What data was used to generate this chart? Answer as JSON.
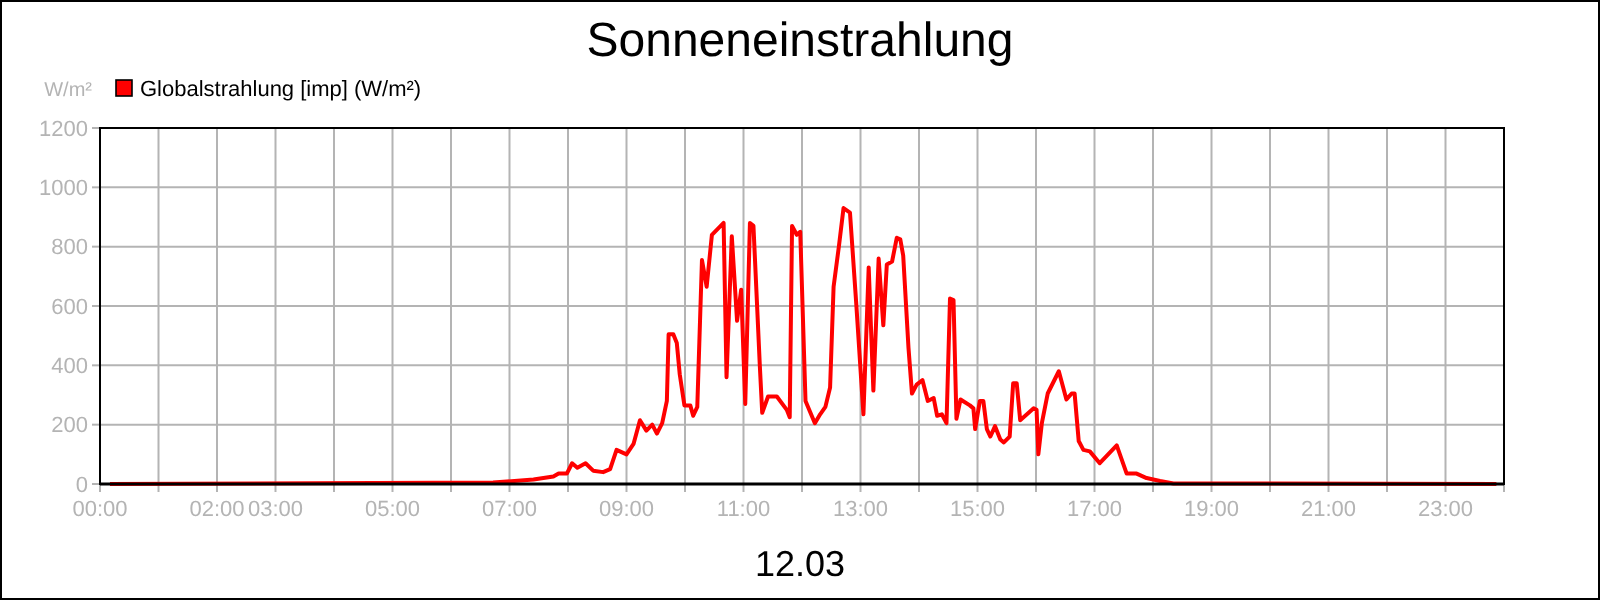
{
  "chart_data": {
    "type": "line",
    "title": "Sonneneinstrahlung",
    "xlabel": "12.03",
    "ylabel": "W/m²",
    "legend": "top left",
    "grid": true,
    "marker": "none",
    "line_style": "solid",
    "xlim": [
      0,
      24
    ],
    "ylim": [
      0,
      1200
    ],
    "yticks": [
      0,
      200,
      400,
      600,
      800,
      1000,
      1200
    ],
    "xticks": [
      {
        "value": 0,
        "label": "00:00"
      },
      {
        "value": 1,
        "label": null
      },
      {
        "value": 2,
        "label": "02:00"
      },
      {
        "value": 3,
        "label": "03:00"
      },
      {
        "value": 4,
        "label": null
      },
      {
        "value": 5,
        "label": "05:00"
      },
      {
        "value": 6,
        "label": null
      },
      {
        "value": 7,
        "label": "07:00"
      },
      {
        "value": 8,
        "label": null
      },
      {
        "value": 9,
        "label": "09:00"
      },
      {
        "value": 10,
        "label": null
      },
      {
        "value": 11,
        "label": "11:00"
      },
      {
        "value": 12,
        "label": null
      },
      {
        "value": 13,
        "label": "13:00"
      },
      {
        "value": 14,
        "label": null
      },
      {
        "value": 15,
        "label": "15:00"
      },
      {
        "value": 16,
        "label": null
      },
      {
        "value": 17,
        "label": "17:00"
      },
      {
        "value": 18,
        "label": null
      },
      {
        "value": 19,
        "label": "19:00"
      },
      {
        "value": 20,
        "label": null
      },
      {
        "value": 21,
        "label": "21:00"
      },
      {
        "value": 22,
        "label": null
      },
      {
        "value": 23,
        "label": "23:00"
      },
      {
        "value": 24,
        "label": null
      }
    ],
    "series": [
      {
        "name": "Globalstrahlung [imp] (W/m²)",
        "color": "#ff0000",
        "x": [
          0.17,
          6.72,
          7.41,
          7.75,
          7.84,
          7.98,
          8.07,
          8.16,
          8.3,
          8.43,
          8.6,
          8.72,
          8.83,
          9.0,
          9.12,
          9.23,
          9.34,
          9.44,
          9.52,
          9.61,
          9.69,
          9.72,
          9.8,
          9.86,
          9.91,
          9.99,
          10.09,
          10.14,
          10.21,
          10.29,
          10.37,
          10.46,
          10.66,
          10.71,
          10.8,
          10.89,
          10.96,
          11.03,
          11.11,
          11.17,
          11.28,
          11.32,
          11.42,
          11.57,
          11.74,
          11.79,
          11.83,
          11.91,
          11.97,
          12.06,
          12.22,
          12.31,
          12.4,
          12.48,
          12.54,
          12.63,
          12.71,
          12.82,
          12.93,
          13.05,
          13.14,
          13.22,
          13.31,
          13.39,
          13.45,
          13.54,
          13.62,
          13.68,
          13.73,
          13.82,
          13.88,
          13.96,
          14.06,
          14.15,
          14.25,
          14.31,
          14.39,
          14.47,
          14.53,
          14.59,
          14.64,
          14.71,
          14.87,
          14.93,
          14.96,
          15.04,
          15.1,
          15.16,
          15.22,
          15.3,
          15.39,
          15.45,
          15.55,
          15.61,
          15.67,
          15.73,
          15.96,
          16.01,
          16.04,
          16.1,
          16.2,
          16.39,
          16.52,
          16.61,
          16.66,
          16.73,
          16.81,
          16.92,
          17.09,
          17.38,
          17.55,
          17.72,
          17.89,
          18.12,
          18.35,
          23.87
        ],
        "values": [
          0,
          5,
          15,
          25,
          35,
          35,
          70,
          55,
          70,
          45,
          40,
          50,
          115,
          100,
          135,
          215,
          180,
          200,
          170,
          205,
          280,
          505,
          505,
          475,
          370,
          265,
          265,
          230,
          260,
          755,
          665,
          840,
          880,
          360,
          835,
          550,
          655,
          270,
          880,
          870,
          395,
          240,
          295,
          295,
          250,
          225,
          870,
          840,
          850,
          280,
          205,
          235,
          260,
          325,
          665,
          800,
          930,
          915,
          600,
          235,
          730,
          315,
          760,
          535,
          740,
          750,
          830,
          825,
          770,
          460,
          305,
          335,
          350,
          280,
          290,
          230,
          235,
          205,
          625,
          620,
          220,
          285,
          265,
          255,
          185,
          280,
          280,
          185,
          160,
          195,
          150,
          140,
          160,
          340,
          340,
          215,
          255,
          250,
          100,
          205,
          305,
          380,
          285,
          305,
          305,
          145,
          115,
          110,
          70,
          130,
          35,
          35,
          20,
          10,
          2,
          0
        ]
      }
    ]
  }
}
